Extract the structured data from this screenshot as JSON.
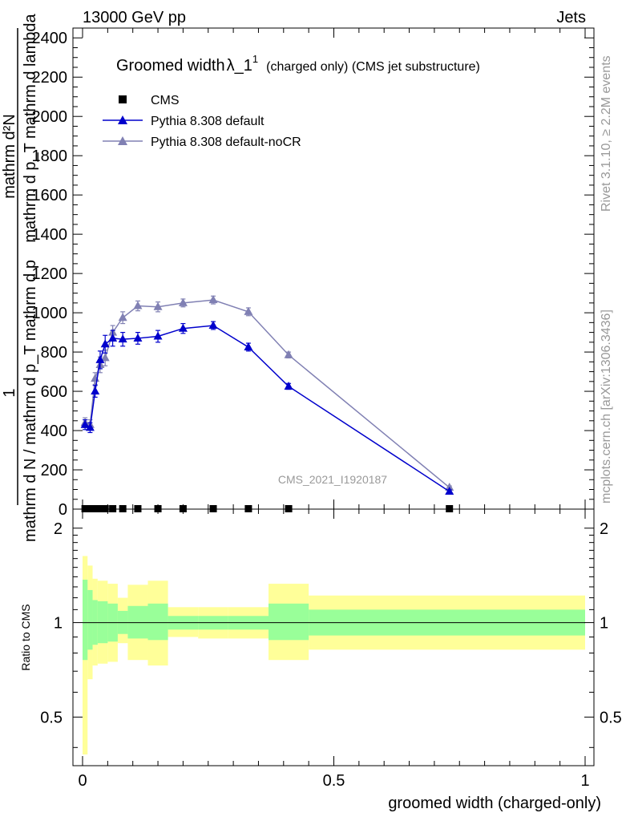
{
  "header": {
    "left": "13000 GeV pp",
    "right": "Jets"
  },
  "title": {
    "main": "Groomed width",
    "symbol": "λ_1",
    "sup": "1",
    "sub": "(charged only) (CMS jet substructure)"
  },
  "watermark": "CMS_2021_I1920187",
  "side_labels": {
    "rivet": "Rivet 3.1.10, ≥ 2.2M events",
    "mcplots": "mcplots.cern.ch [arXiv:1306.3436]"
  },
  "ylabel_main": {
    "numerator": "1",
    "denominator": "mathrm d N / mathrm d p_T mathrm d p",
    "top": "mathrm d²N",
    "top_den": "mathrm d p_T mathrm d lambda"
  },
  "ylabel_ratio": "Ratio to CMS",
  "xlabel": "groomed width (charged-only)",
  "colors": {
    "pythia": "#0000cc",
    "noCR": "#8080b3",
    "band_inner": "#99ff99",
    "band_outer": "#ffff99",
    "cms": "#000000"
  },
  "chart_data": [
    {
      "type": "line",
      "panel": "main",
      "ylim": [
        0,
        2450
      ],
      "xlim": [
        -0.02,
        1.0
      ],
      "yticks": [
        0,
        200,
        400,
        600,
        800,
        1000,
        1200,
        1400,
        1600,
        1800,
        2000,
        2200,
        2400
      ],
      "ytick_labels": [
        "0",
        "200",
        "400",
        "600",
        "800",
        "1000",
        "1200",
        "1400",
        "1600",
        "1800",
        "2000",
        "2200",
        "2400"
      ],
      "legend": {
        "placement": "top-left",
        "entries": [
          "CMS",
          "Pythia 8.308 default",
          "Pythia 8.308 default-noCR"
        ]
      },
      "series": [
        {
          "name": "CMS",
          "marker": "square",
          "x": [
            0.005,
            0.015,
            0.025,
            0.035,
            0.045,
            0.06,
            0.08,
            0.11,
            0.15,
            0.2,
            0.26,
            0.33,
            0.41,
            0.73
          ],
          "y": [
            0,
            0,
            0,
            0,
            0,
            0,
            0,
            0,
            0,
            0,
            0,
            0,
            0,
            0
          ]
        },
        {
          "name": "Pythia 8.308 default",
          "marker": "triangle",
          "x": [
            0.005,
            0.015,
            0.025,
            0.035,
            0.045,
            0.06,
            0.08,
            0.11,
            0.15,
            0.2,
            0.26,
            0.33,
            0.41,
            0.73
          ],
          "y": [
            430,
            415,
            600,
            760,
            840,
            870,
            865,
            870,
            880,
            920,
            935,
            825,
            625,
            90
          ],
          "err": [
            25,
            25,
            30,
            45,
            45,
            40,
            35,
            30,
            30,
            25,
            20,
            20,
            15,
            8
          ]
        },
        {
          "name": "Pythia 8.308 default-noCR",
          "marker": "triangle",
          "x": [
            0.005,
            0.015,
            0.025,
            0.035,
            0.045,
            0.06,
            0.08,
            0.11,
            0.15,
            0.2,
            0.26,
            0.33,
            0.41,
            0.73
          ],
          "y": [
            440,
            430,
            665,
            735,
            770,
            900,
            975,
            1035,
            1030,
            1050,
            1065,
            1005,
            785,
            110
          ],
          "err": [
            25,
            25,
            30,
            40,
            40,
            35,
            30,
            25,
            25,
            20,
            20,
            20,
            15,
            8
          ]
        }
      ]
    },
    {
      "type": "area",
      "panel": "ratio",
      "ylabel": "Ratio to CMS",
      "xlabel": "groomed width (charged-only)",
      "ylim": [
        0.35,
        2.3
      ],
      "xlim": [
        -0.02,
        1.0
      ],
      "log_y": true,
      "yticks": [
        0.5,
        1,
        2
      ],
      "ytick_labels": [
        "0.5",
        "1",
        "2"
      ],
      "xticks": [
        0,
        0.5,
        1
      ],
      "xtick_labels": [
        "0",
        "0.5",
        "1"
      ],
      "bins": [
        {
          "x0": 0.0,
          "x1": 0.01,
          "inner": [
            0.76,
            1.37
          ],
          "outer": [
            0.38,
            1.63
          ]
        },
        {
          "x0": 0.01,
          "x1": 0.02,
          "inner": [
            0.82,
            1.27
          ],
          "outer": [
            0.66,
            1.52
          ]
        },
        {
          "x0": 0.02,
          "x1": 0.03,
          "inner": [
            0.85,
            1.18
          ],
          "outer": [
            0.73,
            1.38
          ]
        },
        {
          "x0": 0.03,
          "x1": 0.05,
          "inner": [
            0.86,
            1.17
          ],
          "outer": [
            0.74,
            1.36
          ]
        },
        {
          "x0": 0.05,
          "x1": 0.07,
          "inner": [
            0.87,
            1.15
          ],
          "outer": [
            0.75,
            1.33
          ]
        },
        {
          "x0": 0.07,
          "x1": 0.09,
          "inner": [
            0.92,
            1.09
          ],
          "outer": [
            0.86,
            1.2
          ]
        },
        {
          "x0": 0.09,
          "x1": 0.13,
          "inner": [
            0.89,
            1.13
          ],
          "outer": [
            0.76,
            1.32
          ]
        },
        {
          "x0": 0.13,
          "x1": 0.17,
          "inner": [
            0.88,
            1.15
          ],
          "outer": [
            0.73,
            1.36
          ]
        },
        {
          "x0": 0.17,
          "x1": 0.23,
          "inner": [
            0.95,
            1.05
          ],
          "outer": [
            0.9,
            1.12
          ]
        },
        {
          "x0": 0.23,
          "x1": 0.29,
          "inner": [
            0.95,
            1.05
          ],
          "outer": [
            0.89,
            1.12
          ]
        },
        {
          "x0": 0.29,
          "x1": 0.37,
          "inner": [
            0.95,
            1.05
          ],
          "outer": [
            0.89,
            1.12
          ]
        },
        {
          "x0": 0.37,
          "x1": 0.45,
          "inner": [
            0.88,
            1.15
          ],
          "outer": [
            0.76,
            1.33
          ]
        },
        {
          "x0": 0.45,
          "x1": 1.0,
          "inner": [
            0.91,
            1.1
          ],
          "outer": [
            0.82,
            1.22
          ]
        }
      ]
    }
  ]
}
